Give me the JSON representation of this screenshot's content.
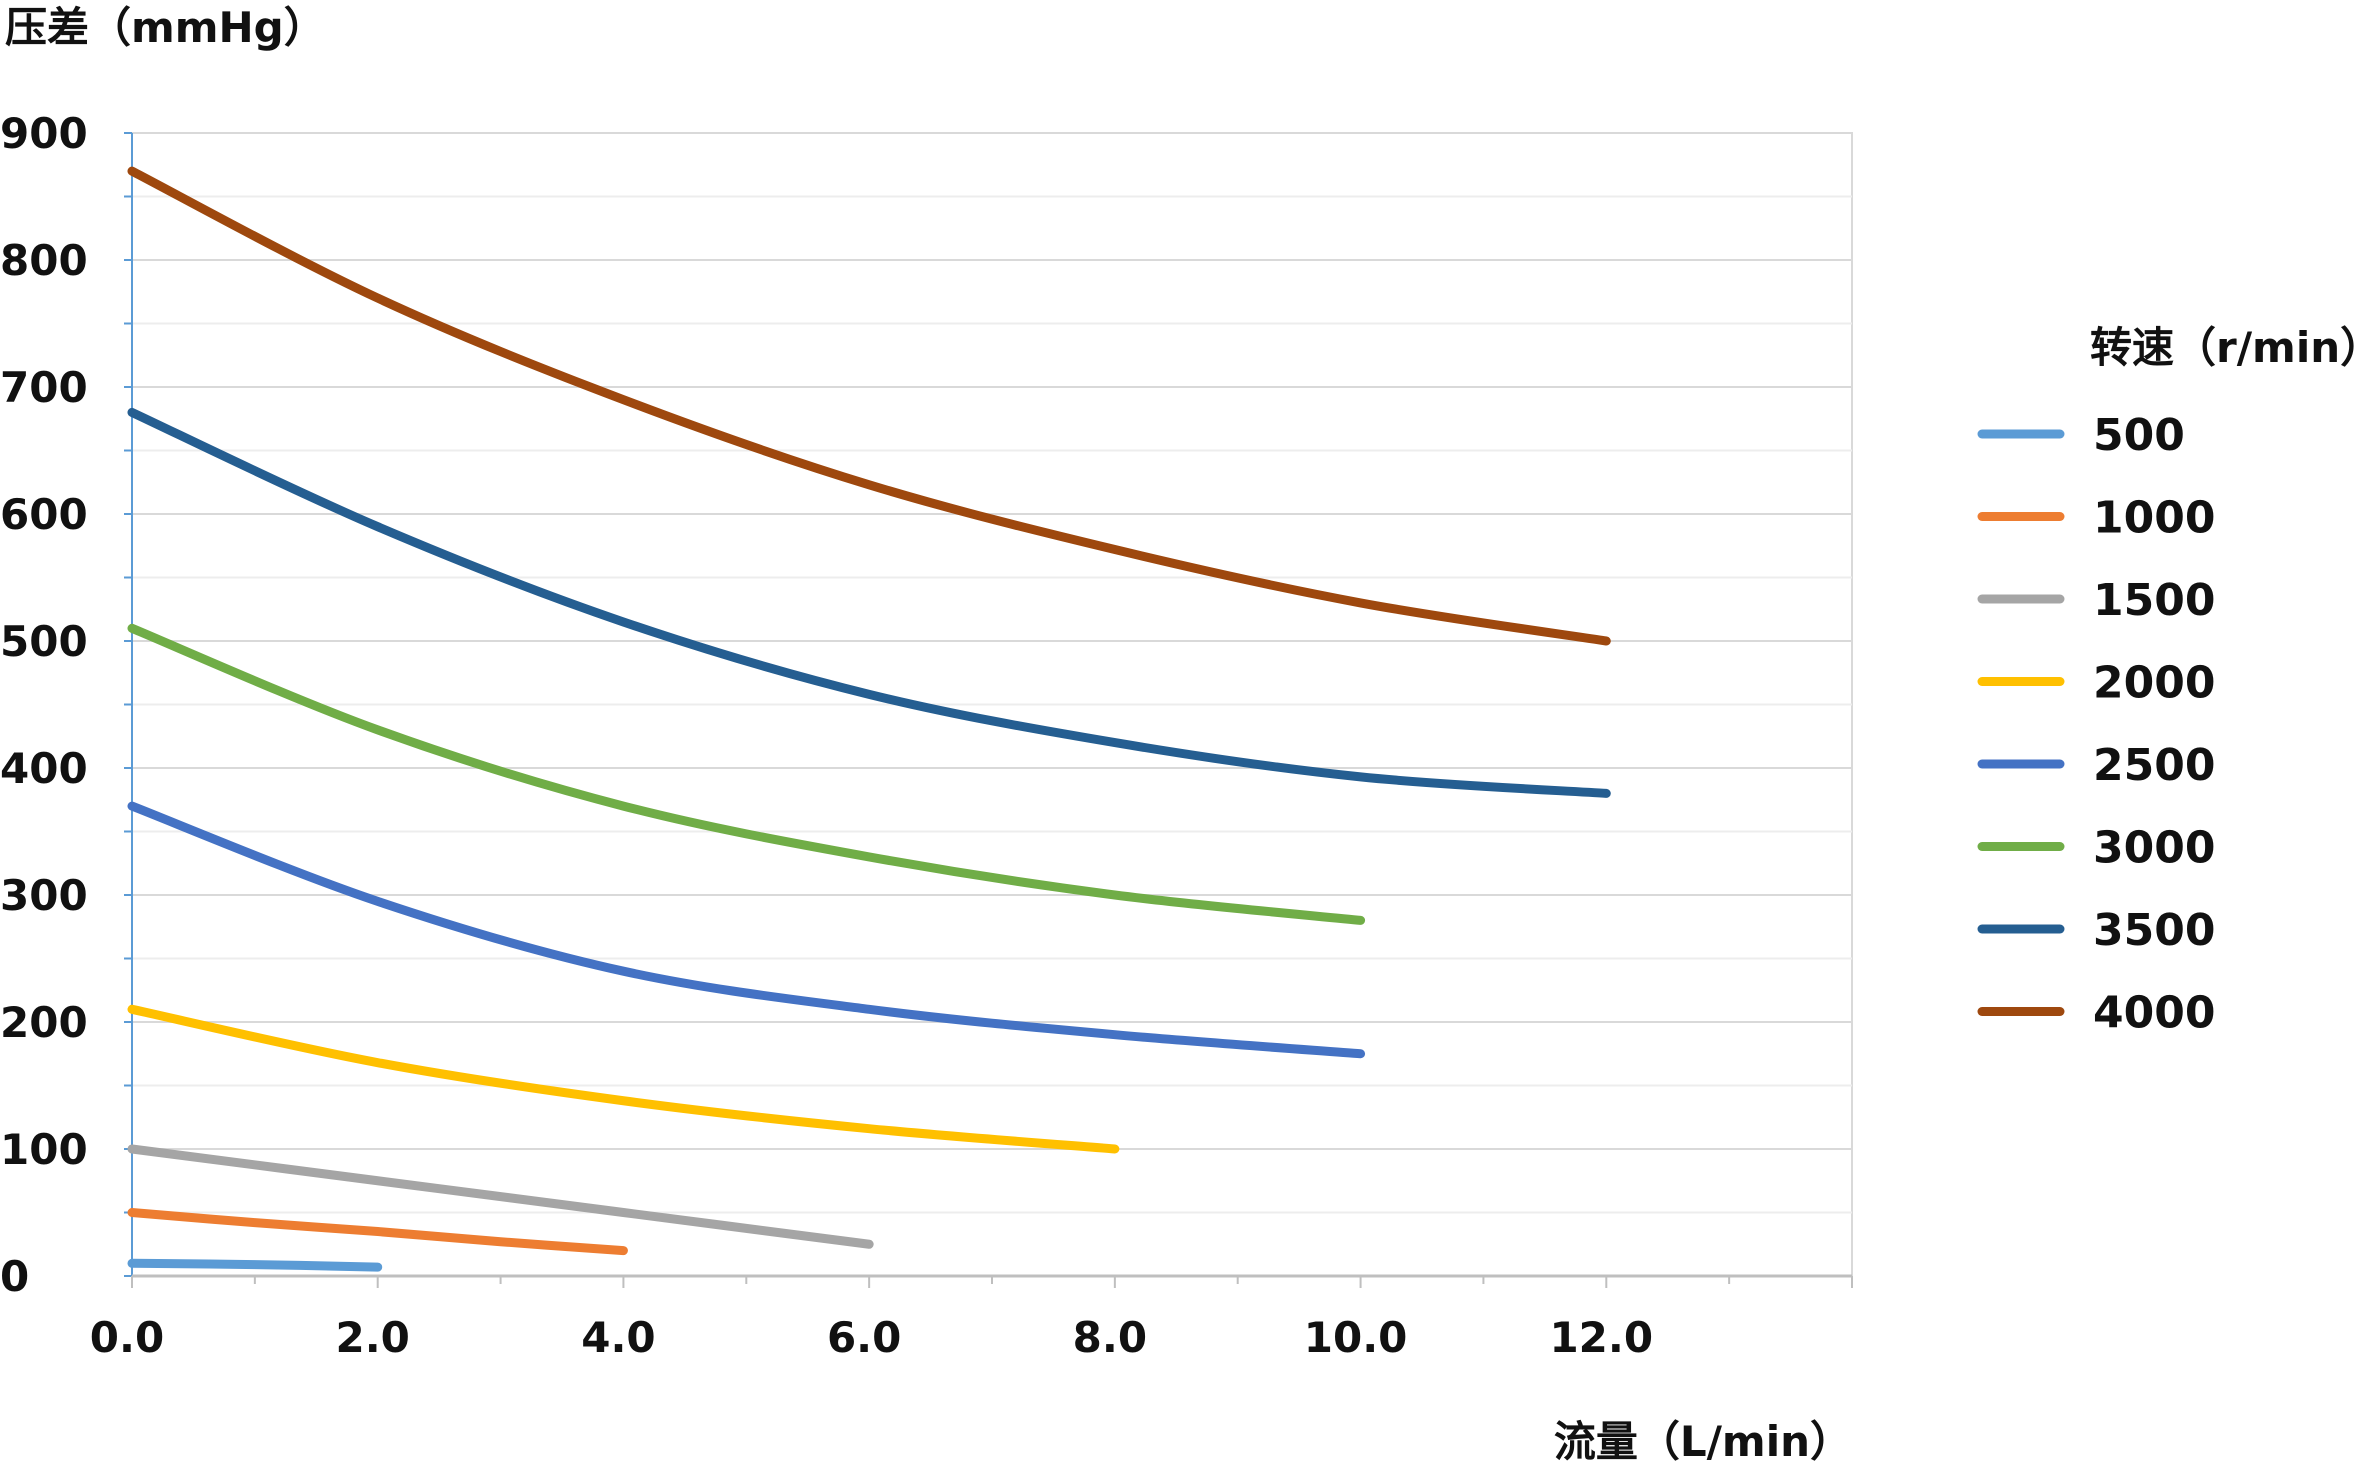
{
  "chart_data": {
    "type": "line",
    "title": "",
    "ylabel": "压差（mmHg）",
    "xlabel": "流量（L/min）",
    "xlim": [
      0,
      14
    ],
    "ylim": [
      0,
      900
    ],
    "x_ticks": [
      "0.0",
      "2.0",
      "4.0",
      "6.0",
      "8.0",
      "10.0",
      "12.0"
    ],
    "y_ticks": [
      "0",
      "100",
      "200",
      "300",
      "400",
      "500",
      "600",
      "700",
      "800",
      "900"
    ],
    "grid": true,
    "legend": {
      "title": "转速（r/min）",
      "position": "right"
    },
    "series": [
      {
        "name": "500",
        "color": "#5b9bd5",
        "points": [
          [
            0,
            10
          ],
          [
            1,
            9
          ],
          [
            2,
            7
          ]
        ]
      },
      {
        "name": "1000",
        "color": "#ed7d31",
        "points": [
          [
            0,
            50
          ],
          [
            1,
            42
          ],
          [
            2,
            35
          ],
          [
            3,
            27
          ],
          [
            4,
            20
          ]
        ]
      },
      {
        "name": "1500",
        "color": "#a5a5a5",
        "points": [
          [
            0,
            100
          ],
          [
            2,
            75
          ],
          [
            4,
            50
          ],
          [
            6,
            25
          ]
        ]
      },
      {
        "name": "2000",
        "color": "#ffc000",
        "points": [
          [
            0,
            210
          ],
          [
            2,
            168
          ],
          [
            4,
            138
          ],
          [
            6,
            116
          ],
          [
            8,
            100
          ]
        ]
      },
      {
        "name": "2500",
        "color": "#4472c4",
        "points": [
          [
            0,
            370
          ],
          [
            2,
            295
          ],
          [
            4,
            240
          ],
          [
            6,
            210
          ],
          [
            8,
            190
          ],
          [
            10,
            175
          ]
        ]
      },
      {
        "name": "3000",
        "color": "#70ad47",
        "points": [
          [
            0,
            510
          ],
          [
            2,
            430
          ],
          [
            4,
            370
          ],
          [
            6,
            330
          ],
          [
            8,
            300
          ],
          [
            10,
            280
          ]
        ]
      },
      {
        "name": "3500",
        "color": "#255e91",
        "points": [
          [
            0,
            680
          ],
          [
            2,
            590
          ],
          [
            4,
            515
          ],
          [
            6,
            458
          ],
          [
            8,
            420
          ],
          [
            10,
            393
          ],
          [
            12,
            380
          ]
        ]
      },
      {
        "name": "4000",
        "color": "#9e480e",
        "points": [
          [
            0,
            870
          ],
          [
            2,
            770
          ],
          [
            4,
            690
          ],
          [
            6,
            623
          ],
          [
            8,
            572
          ],
          [
            10,
            530
          ],
          [
            12,
            500
          ]
        ]
      }
    ]
  }
}
